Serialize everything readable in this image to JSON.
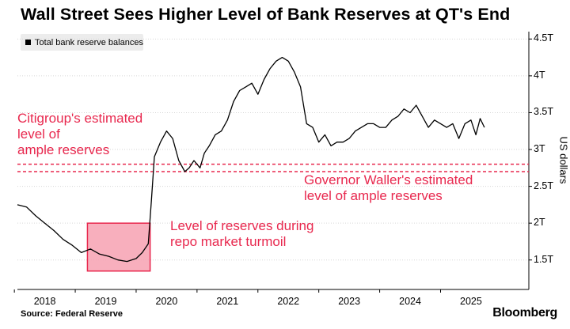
{
  "title": "Wall Street Sees Higher Level of Bank Reserves at QT's End",
  "source": "Source: Federal Reserve",
  "brand": "Bloomberg",
  "chart_data": {
    "type": "line",
    "title": "Wall Street Sees Higher Level of Bank Reserves at QT's End",
    "ylabel": "US dollars",
    "xlabel": "",
    "ylim": [
      1.1,
      4.6
    ],
    "xlim": [
      2017.55,
      2025.95
    ],
    "y_ticks": [
      1.5,
      2,
      2.5,
      3,
      3.5,
      4,
      4.5
    ],
    "y_tick_labels": [
      "1.5T",
      "2T",
      "2.5T",
      "3T",
      "3.5T",
      "4T",
      "4.5T"
    ],
    "x_ticks": [
      2018,
      2019,
      2020,
      2021,
      2022,
      2023,
      2024,
      2025
    ],
    "x_tick_labels": [
      "2018",
      "2019",
      "2020",
      "2021",
      "2022",
      "2023",
      "2024",
      "2025"
    ],
    "legend": {
      "placement": "top-left",
      "entries": [
        "Total bank reserve balances"
      ]
    },
    "series": [
      {
        "name": "Total bank reserve balances",
        "color": "#000000",
        "x": [
          2017.55,
          2017.7,
          2017.85,
          2018.0,
          2018.15,
          2018.3,
          2018.45,
          2018.6,
          2018.75,
          2018.9,
          2019.05,
          2019.2,
          2019.35,
          2019.5,
          2019.6,
          2019.7,
          2019.75,
          2019.8,
          2019.9,
          2020.0,
          2020.1,
          2020.2,
          2020.3,
          2020.37,
          2020.45,
          2020.55,
          2020.62,
          2020.7,
          2020.8,
          2020.9,
          2021.0,
          2021.1,
          2021.2,
          2021.3,
          2021.4,
          2021.5,
          2021.6,
          2021.7,
          2021.8,
          2021.9,
          2022.0,
          2022.1,
          2022.2,
          2022.3,
          2022.4,
          2022.5,
          2022.6,
          2022.7,
          2022.8,
          2022.9,
          2023.0,
          2023.1,
          2023.2,
          2023.3,
          2023.4,
          2023.5,
          2023.6,
          2023.7,
          2023.8,
          2023.9,
          2024.0,
          2024.1,
          2024.2,
          2024.3,
          2024.4,
          2024.5,
          2024.6,
          2024.7,
          2024.8,
          2024.9,
          2025.0,
          2025.08,
          2025.15,
          2025.22
        ],
        "values": [
          2.25,
          2.22,
          2.1,
          2.0,
          1.9,
          1.78,
          1.7,
          1.6,
          1.65,
          1.58,
          1.55,
          1.5,
          1.48,
          1.52,
          1.6,
          1.72,
          2.3,
          2.9,
          3.1,
          3.25,
          3.15,
          2.85,
          2.7,
          2.75,
          2.85,
          2.75,
          2.95,
          3.05,
          3.2,
          3.25,
          3.4,
          3.65,
          3.8,
          3.85,
          3.9,
          3.75,
          3.95,
          4.1,
          4.2,
          4.25,
          4.2,
          4.05,
          3.85,
          3.35,
          3.3,
          3.1,
          3.2,
          3.05,
          3.1,
          3.1,
          3.15,
          3.25,
          3.3,
          3.35,
          3.35,
          3.3,
          3.3,
          3.4,
          3.45,
          3.55,
          3.5,
          3.6,
          3.45,
          3.3,
          3.4,
          3.35,
          3.3,
          3.35,
          3.15,
          3.35,
          3.4,
          3.2,
          3.42,
          3.3
        ]
      }
    ],
    "reference_lines": [
      {
        "y": 2.8,
        "color": "#e8284e",
        "style": "dashed"
      },
      {
        "y": 2.7,
        "color": "#e8284e",
        "style": "dashed"
      }
    ],
    "highlight_box": {
      "x": [
        2018.7,
        2019.73
      ],
      "y": [
        1.35,
        2.0
      ],
      "color": "#e8284e"
    },
    "annotations": {
      "citigroup": "Citigroup's estimated\nlevel of\nample reserves",
      "waller": "Governor Waller's estimated\nlevel of ample reserves",
      "repo": "Level of reserves during\nrepo market turmoil"
    }
  }
}
